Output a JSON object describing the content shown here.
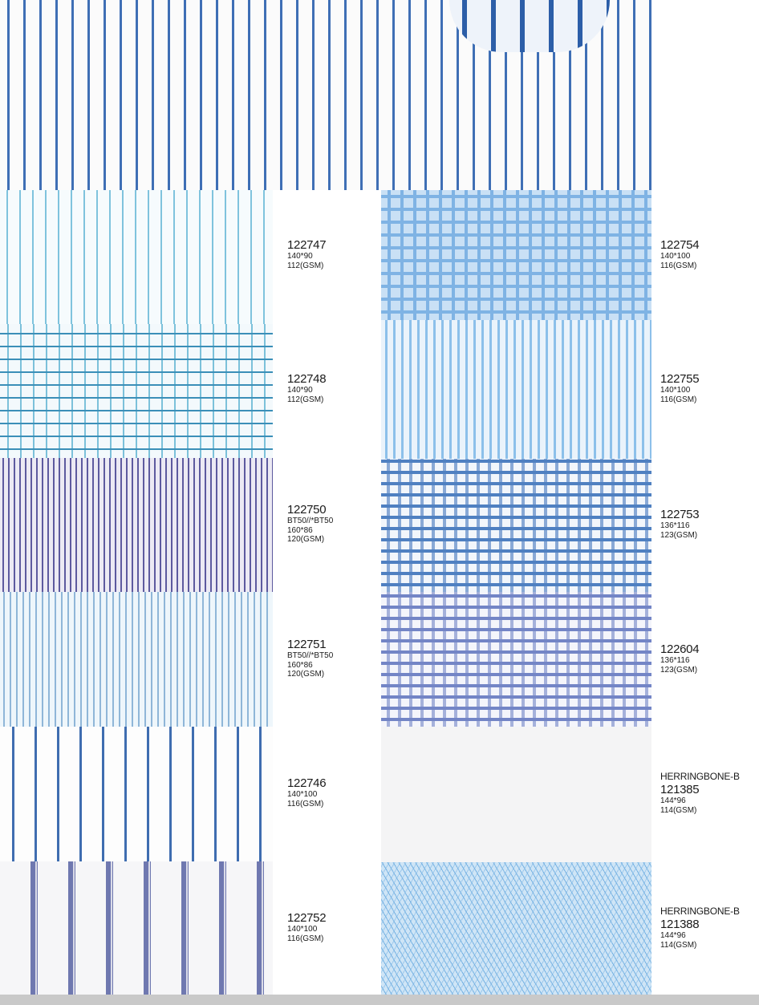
{
  "items": [
    {
      "code": "122747",
      "spec1": "140*90",
      "spec2": "112(GSM)"
    },
    {
      "code": "122748",
      "spec1": "140*90",
      "spec2": "112(GSM)"
    },
    {
      "code": "122750",
      "spec0": "BT50//*BT50",
      "spec1": "160*86",
      "spec2": "120(GSM)"
    },
    {
      "code": "122751",
      "spec0": "BT50//*BT50",
      "spec1": "160*86",
      "spec2": "120(GSM)"
    },
    {
      "code": "122746",
      "spec1": "140*100",
      "spec2": "116(GSM)"
    },
    {
      "code": "122752",
      "spec1": "140*100",
      "spec2": "116(GSM)"
    },
    {
      "code": "122754",
      "spec1": "140*100",
      "spec2": "116(GSM)"
    },
    {
      "code": "122755",
      "spec1": "140*100",
      "spec2": "116(GSM)"
    },
    {
      "code": "122753",
      "spec1": "136*116",
      "spec2": "123(GSM)"
    },
    {
      "code": "122604",
      "spec1": "136*116",
      "spec2": "123(GSM)"
    },
    {
      "pre": "HERRINGBONE-B",
      "code": "121385",
      "spec1": "144*96",
      "spec2": "114(GSM)"
    },
    {
      "pre": "HERRINGBONE-B",
      "code": "121388",
      "spec1": "144*96",
      "spec2": "114(GSM)"
    }
  ]
}
